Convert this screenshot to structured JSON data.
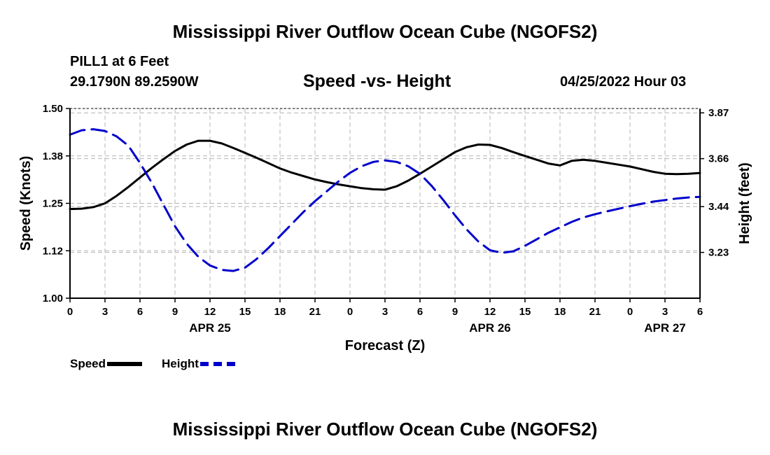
{
  "header": {
    "title": "Mississippi River Outflow Ocean Cube (NGOFS2)",
    "station": "PILL1 at 6 Feet",
    "coordinates": "29.1790N  89.2590W",
    "subtitle": "Speed -vs- Height",
    "datetime": "04/25/2022 Hour 03"
  },
  "footer": {
    "title": "Mississippi River Outflow Ocean Cube (NGOFS2)"
  },
  "chart_data": {
    "type": "line",
    "xlabel": "Forecast (Z)",
    "x_hours": [
      0,
      1,
      2,
      3,
      4,
      5,
      6,
      7,
      8,
      9,
      10,
      11,
      12,
      13,
      14,
      15,
      16,
      17,
      18,
      19,
      20,
      21,
      22,
      23,
      24,
      25,
      26,
      27,
      28,
      29,
      30,
      31,
      32,
      33,
      34,
      35,
      36,
      37,
      38,
      39,
      40,
      41,
      42,
      43,
      44,
      45,
      46,
      47,
      48,
      49,
      50,
      51,
      52,
      53,
      54
    ],
    "x_tick_labels": [
      "0",
      "3",
      "6",
      "9",
      "12",
      "15",
      "18",
      "21",
      "0",
      "3",
      "6",
      "9",
      "12",
      "15",
      "18",
      "21",
      "0",
      "3",
      "6"
    ],
    "x_tick_step_hours": 3,
    "date_labels": [
      {
        "label": "APR 25",
        "hour": 12
      },
      {
        "label": "APR 26",
        "hour": 36
      },
      {
        "label": "APR 27",
        "hour": 51
      }
    ],
    "left_axis": {
      "label": "Speed (Knots)",
      "range": [
        1.0,
        1.5
      ],
      "ticks": [
        "1.00",
        "1.12",
        "1.25",
        "1.38",
        "1.50"
      ]
    },
    "right_axis": {
      "label": "Height (feet)",
      "range": [
        3.02,
        3.89
      ],
      "ticks": [
        {
          "label": "3.23",
          "value": 3.23
        },
        {
          "label": "3.44",
          "value": 3.44
        },
        {
          "label": "3.66",
          "value": 3.66
        },
        {
          "label": "3.87",
          "value": 3.87
        }
      ]
    },
    "grid": true,
    "series": [
      {
        "name": "Speed",
        "axis": "left",
        "color": "#000000",
        "style": "solid",
        "values": [
          1.235,
          1.236,
          1.24,
          1.25,
          1.27,
          1.293,
          1.318,
          1.343,
          1.366,
          1.388,
          1.405,
          1.415,
          1.415,
          1.408,
          1.396,
          1.383,
          1.37,
          1.356,
          1.342,
          1.331,
          1.322,
          1.313,
          1.306,
          1.3,
          1.295,
          1.29,
          1.287,
          1.286,
          1.295,
          1.31,
          1.328,
          1.347,
          1.366,
          1.385,
          1.398,
          1.405,
          1.404,
          1.396,
          1.385,
          1.375,
          1.365,
          1.355,
          1.35,
          1.362,
          1.365,
          1.362,
          1.357,
          1.352,
          1.347,
          1.34,
          1.333,
          1.328,
          1.327,
          1.328,
          1.33
        ]
      },
      {
        "name": "Height",
        "axis": "right",
        "color": "#0000cc",
        "style": "dashed",
        "values": [
          3.77,
          3.79,
          3.795,
          3.787,
          3.762,
          3.72,
          3.64,
          3.55,
          3.45,
          3.35,
          3.27,
          3.21,
          3.17,
          3.15,
          3.145,
          3.16,
          3.2,
          3.25,
          3.305,
          3.36,
          3.415,
          3.465,
          3.51,
          3.555,
          3.595,
          3.625,
          3.645,
          3.652,
          3.645,
          3.625,
          3.59,
          3.535,
          3.47,
          3.4,
          3.335,
          3.28,
          3.24,
          3.228,
          3.235,
          3.26,
          3.29,
          3.32,
          3.345,
          3.37,
          3.39,
          3.405,
          3.418,
          3.43,
          3.442,
          3.453,
          3.463,
          3.47,
          3.477,
          3.482,
          3.485
        ]
      }
    ]
  }
}
